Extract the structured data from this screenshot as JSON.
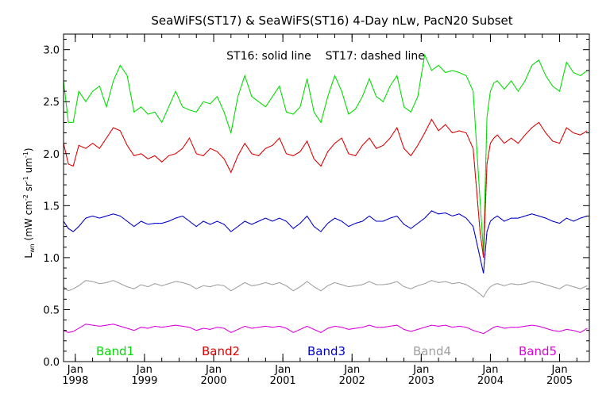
{
  "chart_data": {
    "type": "line",
    "title": "SeaWiFS(ST17) & SeaWiFS(ST16) 4-Day nLw, PacN20 Subset",
    "annotation": "ST16: solid line    ST17: dashed line",
    "ylabel": {
      "base": "L",
      "base_sub": "wn",
      "open": " (mW cm",
      "sup1": "-2",
      "mid1": " sr",
      "sup2": "-1",
      "mid2": " um",
      "sup3": "-1",
      "close": ")"
    },
    "ylim": [
      0,
      3.15
    ],
    "xlim": [
      1997.83,
      2005.43
    ],
    "y_ticks": [
      "0.0",
      "0.5",
      "1.0",
      "1.5",
      "2.0",
      "2.5",
      "3.0"
    ],
    "y_tick_values": [
      0,
      0.5,
      1.0,
      1.5,
      2.0,
      2.5,
      3.0
    ],
    "x_ticks": [
      {
        "value": 1998.0,
        "month": "Jan",
        "year": "1998"
      },
      {
        "value": 1999.0,
        "month": "Jan",
        "year": "1999"
      },
      {
        "value": 2000.0,
        "month": "Jan",
        "year": "2000"
      },
      {
        "value": 2001.0,
        "month": "Jan",
        "year": "2001"
      },
      {
        "value": 2002.0,
        "month": "Jan",
        "year": "2002"
      },
      {
        "value": 2003.0,
        "month": "Jan",
        "year": "2003"
      },
      {
        "value": 2004.0,
        "month": "Jan",
        "year": "2004"
      },
      {
        "value": 2005.0,
        "month": "Jan",
        "year": "2005"
      }
    ],
    "x_minor_tick_step": 0.25,
    "y_minor_tick_step": 0.1,
    "grid": false,
    "legend_placement": "bottom",
    "colors": {
      "Band1": "#00dd00",
      "Band2": "#dd0000",
      "Band3": "#0000cc",
      "Band4": "#a0a0a0",
      "Band5": "#dd00dd"
    },
    "series": [
      {
        "name": "Band1",
        "x": [
          1997.83,
          1997.9,
          1997.97,
          1998.05,
          1998.15,
          1998.25,
          1998.35,
          1998.45,
          1998.55,
          1998.65,
          1998.75,
          1998.85,
          1998.95,
          1999.05,
          1999.15,
          1999.25,
          1999.35,
          1999.45,
          1999.55,
          1999.65,
          1999.75,
          1999.85,
          1999.95,
          2000.05,
          2000.15,
          2000.25,
          2000.35,
          2000.45,
          2000.55,
          2000.65,
          2000.75,
          2000.85,
          2000.95,
          2001.05,
          2001.15,
          2001.25,
          2001.35,
          2001.45,
          2001.55,
          2001.65,
          2001.75,
          2001.85,
          2001.95,
          2002.05,
          2002.15,
          2002.25,
          2002.35,
          2002.45,
          2002.55,
          2002.65,
          2002.75,
          2002.85,
          2002.95,
          2003.05,
          2003.15,
          2003.25,
          2003.35,
          2003.45,
          2003.55,
          2003.65,
          2003.75,
          2003.85,
          2003.9,
          2003.95,
          2004.0,
          2004.05,
          2004.1,
          2004.2,
          2004.3,
          2004.4,
          2004.5,
          2004.6,
          2004.7,
          2004.8,
          2004.9,
          2005.0,
          2005.1,
          2005.2,
          2005.3,
          2005.4
        ],
        "y": [
          2.7,
          2.3,
          2.3,
          2.6,
          2.5,
          2.6,
          2.65,
          2.45,
          2.7,
          2.85,
          2.75,
          2.4,
          2.45,
          2.38,
          2.4,
          2.3,
          2.45,
          2.6,
          2.45,
          2.42,
          2.4,
          2.5,
          2.48,
          2.55,
          2.4,
          2.2,
          2.55,
          2.75,
          2.55,
          2.5,
          2.45,
          2.55,
          2.65,
          2.4,
          2.38,
          2.45,
          2.72,
          2.4,
          2.3,
          2.55,
          2.75,
          2.6,
          2.38,
          2.43,
          2.55,
          2.72,
          2.55,
          2.5,
          2.65,
          2.75,
          2.45,
          2.4,
          2.55,
          2.95,
          2.8,
          2.85,
          2.78,
          2.8,
          2.78,
          2.75,
          2.6,
          1.55,
          1.05,
          2.35,
          2.6,
          2.68,
          2.7,
          2.62,
          2.7,
          2.6,
          2.7,
          2.85,
          2.9,
          2.75,
          2.65,
          2.6,
          2.88,
          2.78,
          2.75,
          2.8
        ]
      },
      {
        "name": "Band2",
        "x": [
          1997.83,
          1997.9,
          1997.97,
          1998.05,
          1998.15,
          1998.25,
          1998.35,
          1998.45,
          1998.55,
          1998.65,
          1998.75,
          1998.85,
          1998.95,
          1999.05,
          1999.15,
          1999.25,
          1999.35,
          1999.45,
          1999.55,
          1999.65,
          1999.75,
          1999.85,
          1999.95,
          2000.05,
          2000.15,
          2000.25,
          2000.35,
          2000.45,
          2000.55,
          2000.65,
          2000.75,
          2000.85,
          2000.95,
          2001.05,
          2001.15,
          2001.25,
          2001.35,
          2001.45,
          2001.55,
          2001.65,
          2001.75,
          2001.85,
          2001.95,
          2002.05,
          2002.15,
          2002.25,
          2002.35,
          2002.45,
          2002.55,
          2002.65,
          2002.75,
          2002.85,
          2002.95,
          2003.05,
          2003.15,
          2003.25,
          2003.35,
          2003.45,
          2003.55,
          2003.65,
          2003.75,
          2003.85,
          2003.9,
          2003.95,
          2004.0,
          2004.05,
          2004.1,
          2004.2,
          2004.3,
          2004.4,
          2004.5,
          2004.6,
          2004.7,
          2004.8,
          2004.9,
          2005.0,
          2005.1,
          2005.2,
          2005.3,
          2005.4
        ],
        "y": [
          2.1,
          1.9,
          1.88,
          2.08,
          2.05,
          2.1,
          2.05,
          2.15,
          2.25,
          2.22,
          2.08,
          1.98,
          2.0,
          1.95,
          1.98,
          1.92,
          1.98,
          2.0,
          2.05,
          2.15,
          2.0,
          1.98,
          2.05,
          2.02,
          1.95,
          1.82,
          1.98,
          2.1,
          2.0,
          1.98,
          2.05,
          2.08,
          2.15,
          2.0,
          1.98,
          2.02,
          2.12,
          1.95,
          1.88,
          2.02,
          2.1,
          2.15,
          2.0,
          1.98,
          2.08,
          2.15,
          2.05,
          2.08,
          2.15,
          2.25,
          2.05,
          1.98,
          2.08,
          2.2,
          2.33,
          2.22,
          2.28,
          2.2,
          2.22,
          2.2,
          2.05,
          1.25,
          1.0,
          1.9,
          2.1,
          2.15,
          2.18,
          2.1,
          2.15,
          2.1,
          2.18,
          2.25,
          2.3,
          2.2,
          2.12,
          2.1,
          2.25,
          2.2,
          2.18,
          2.22
        ]
      },
      {
        "name": "Band3",
        "x": [
          1997.83,
          1997.9,
          1997.97,
          1998.05,
          1998.15,
          1998.25,
          1998.35,
          1998.45,
          1998.55,
          1998.65,
          1998.75,
          1998.85,
          1998.95,
          1999.05,
          1999.15,
          1999.25,
          1999.35,
          1999.45,
          1999.55,
          1999.65,
          1999.75,
          1999.85,
          1999.95,
          2000.05,
          2000.15,
          2000.25,
          2000.35,
          2000.45,
          2000.55,
          2000.65,
          2000.75,
          2000.85,
          2000.95,
          2001.05,
          2001.15,
          2001.25,
          2001.35,
          2001.45,
          2001.55,
          2001.65,
          2001.75,
          2001.85,
          2001.95,
          2002.05,
          2002.15,
          2002.25,
          2002.35,
          2002.45,
          2002.55,
          2002.65,
          2002.75,
          2002.85,
          2002.95,
          2003.05,
          2003.15,
          2003.25,
          2003.35,
          2003.45,
          2003.55,
          2003.65,
          2003.75,
          2003.85,
          2003.9,
          2003.95,
          2004.0,
          2004.05,
          2004.1,
          2004.2,
          2004.3,
          2004.4,
          2004.5,
          2004.6,
          2004.7,
          2004.8,
          2004.9,
          2005.0,
          2005.1,
          2005.2,
          2005.3,
          2005.4
        ],
        "y": [
          1.35,
          1.28,
          1.25,
          1.3,
          1.38,
          1.4,
          1.38,
          1.4,
          1.42,
          1.4,
          1.35,
          1.3,
          1.35,
          1.32,
          1.33,
          1.33,
          1.35,
          1.38,
          1.4,
          1.35,
          1.3,
          1.35,
          1.32,
          1.35,
          1.32,
          1.25,
          1.3,
          1.35,
          1.32,
          1.35,
          1.38,
          1.35,
          1.38,
          1.35,
          1.28,
          1.33,
          1.4,
          1.3,
          1.25,
          1.33,
          1.38,
          1.35,
          1.3,
          1.33,
          1.35,
          1.4,
          1.35,
          1.35,
          1.38,
          1.4,
          1.32,
          1.28,
          1.33,
          1.38,
          1.45,
          1.42,
          1.43,
          1.4,
          1.42,
          1.38,
          1.3,
          1.0,
          0.85,
          1.25,
          1.35,
          1.38,
          1.4,
          1.35,
          1.38,
          1.38,
          1.4,
          1.42,
          1.4,
          1.38,
          1.35,
          1.33,
          1.38,
          1.35,
          1.38,
          1.4
        ]
      },
      {
        "name": "Band4",
        "x": [
          1997.83,
          1997.9,
          1997.97,
          1998.05,
          1998.15,
          1998.25,
          1998.35,
          1998.45,
          1998.55,
          1998.65,
          1998.75,
          1998.85,
          1998.95,
          1999.05,
          1999.15,
          1999.25,
          1999.35,
          1999.45,
          1999.55,
          1999.65,
          1999.75,
          1999.85,
          1999.95,
          2000.05,
          2000.15,
          2000.25,
          2000.35,
          2000.45,
          2000.55,
          2000.65,
          2000.75,
          2000.85,
          2000.95,
          2001.05,
          2001.15,
          2001.25,
          2001.35,
          2001.45,
          2001.55,
          2001.65,
          2001.75,
          2001.85,
          2001.95,
          2002.05,
          2002.15,
          2002.25,
          2002.35,
          2002.45,
          2002.55,
          2002.65,
          2002.75,
          2002.85,
          2002.95,
          2003.05,
          2003.15,
          2003.25,
          2003.35,
          2003.45,
          2003.55,
          2003.65,
          2003.75,
          2003.85,
          2003.9,
          2003.95,
          2004.0,
          2004.05,
          2004.1,
          2004.2,
          2004.3,
          2004.4,
          2004.5,
          2004.6,
          2004.7,
          2004.8,
          2004.9,
          2005.0,
          2005.1,
          2005.2,
          2005.3,
          2005.4
        ],
        "y": [
          0.72,
          0.68,
          0.7,
          0.73,
          0.78,
          0.77,
          0.75,
          0.76,
          0.78,
          0.75,
          0.72,
          0.7,
          0.74,
          0.72,
          0.75,
          0.73,
          0.75,
          0.77,
          0.76,
          0.74,
          0.7,
          0.73,
          0.72,
          0.74,
          0.73,
          0.68,
          0.72,
          0.76,
          0.73,
          0.74,
          0.76,
          0.74,
          0.76,
          0.73,
          0.68,
          0.72,
          0.77,
          0.72,
          0.68,
          0.73,
          0.76,
          0.74,
          0.72,
          0.73,
          0.74,
          0.77,
          0.74,
          0.74,
          0.75,
          0.77,
          0.72,
          0.7,
          0.73,
          0.75,
          0.78,
          0.76,
          0.77,
          0.75,
          0.76,
          0.74,
          0.7,
          0.65,
          0.62,
          0.68,
          0.72,
          0.74,
          0.75,
          0.73,
          0.75,
          0.74,
          0.75,
          0.77,
          0.76,
          0.74,
          0.72,
          0.7,
          0.74,
          0.72,
          0.7,
          0.73
        ]
      },
      {
        "name": "Band5",
        "x": [
          1997.83,
          1997.9,
          1997.97,
          1998.05,
          1998.15,
          1998.25,
          1998.35,
          1998.45,
          1998.55,
          1998.65,
          1998.75,
          1998.85,
          1998.95,
          1999.05,
          1999.15,
          1999.25,
          1999.35,
          1999.45,
          1999.55,
          1999.65,
          1999.75,
          1999.85,
          1999.95,
          2000.05,
          2000.15,
          2000.25,
          2000.35,
          2000.45,
          2000.55,
          2000.65,
          2000.75,
          2000.85,
          2000.95,
          2001.05,
          2001.15,
          2001.25,
          2001.35,
          2001.45,
          2001.55,
          2001.65,
          2001.75,
          2001.85,
          2001.95,
          2002.05,
          2002.15,
          2002.25,
          2002.35,
          2002.45,
          2002.55,
          2002.65,
          2002.75,
          2002.85,
          2002.95,
          2003.05,
          2003.15,
          2003.25,
          2003.35,
          2003.45,
          2003.55,
          2003.65,
          2003.75,
          2003.85,
          2003.9,
          2003.95,
          2004.0,
          2004.05,
          2004.1,
          2004.2,
          2004.3,
          2004.4,
          2004.5,
          2004.6,
          2004.7,
          2004.8,
          2004.9,
          2005.0,
          2005.1,
          2005.2,
          2005.3,
          2005.4
        ],
        "y": [
          0.3,
          0.28,
          0.29,
          0.32,
          0.36,
          0.35,
          0.34,
          0.35,
          0.36,
          0.34,
          0.32,
          0.3,
          0.33,
          0.32,
          0.34,
          0.33,
          0.34,
          0.35,
          0.34,
          0.33,
          0.3,
          0.32,
          0.31,
          0.33,
          0.32,
          0.28,
          0.31,
          0.34,
          0.32,
          0.33,
          0.34,
          0.33,
          0.34,
          0.32,
          0.28,
          0.31,
          0.34,
          0.31,
          0.28,
          0.32,
          0.34,
          0.33,
          0.31,
          0.32,
          0.33,
          0.35,
          0.33,
          0.33,
          0.34,
          0.35,
          0.31,
          0.29,
          0.31,
          0.33,
          0.35,
          0.34,
          0.35,
          0.33,
          0.34,
          0.33,
          0.3,
          0.28,
          0.27,
          0.29,
          0.31,
          0.33,
          0.34,
          0.32,
          0.33,
          0.33,
          0.34,
          0.35,
          0.34,
          0.32,
          0.3,
          0.29,
          0.31,
          0.3,
          0.28,
          0.32
        ]
      }
    ]
  }
}
